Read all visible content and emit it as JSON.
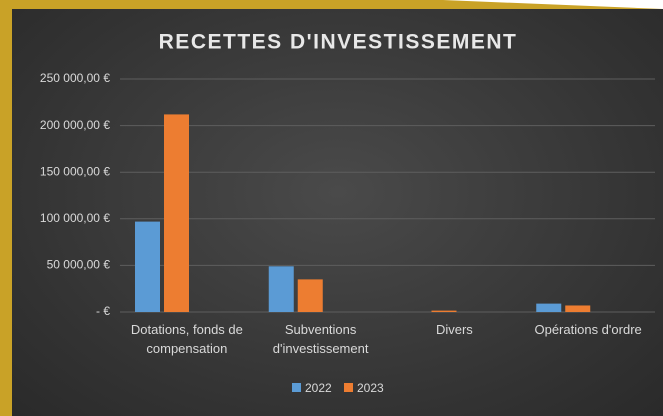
{
  "chart_data": {
    "type": "bar",
    "title": "RECETTES  D'INVESTISSEMENT",
    "categories": [
      "Dotations, fonds de compensation",
      "Subventions d'investissement",
      "Divers",
      "Opérations d'ordre"
    ],
    "series": [
      {
        "name": "2022",
        "color": "#5b9bd5",
        "values": [
          97000,
          49000,
          0,
          9000
        ]
      },
      {
        "name": "2023",
        "color": "#ed7d31",
        "values": [
          212000,
          35000,
          1500,
          7000
        ]
      }
    ],
    "ylim": [
      0,
      250000
    ],
    "yticks": [
      {
        "value": 0,
        "label": "-   €"
      },
      {
        "value": 50000,
        "label": "50 000,00 €"
      },
      {
        "value": 100000,
        "label": "100 000,00 €"
      },
      {
        "value": 150000,
        "label": "150 000,00 €"
      },
      {
        "value": 200000,
        "label": "200 000,00 €"
      },
      {
        "value": 250000,
        "label": "250 000,00 €"
      }
    ],
    "grid": true,
    "legend": "bottom"
  }
}
